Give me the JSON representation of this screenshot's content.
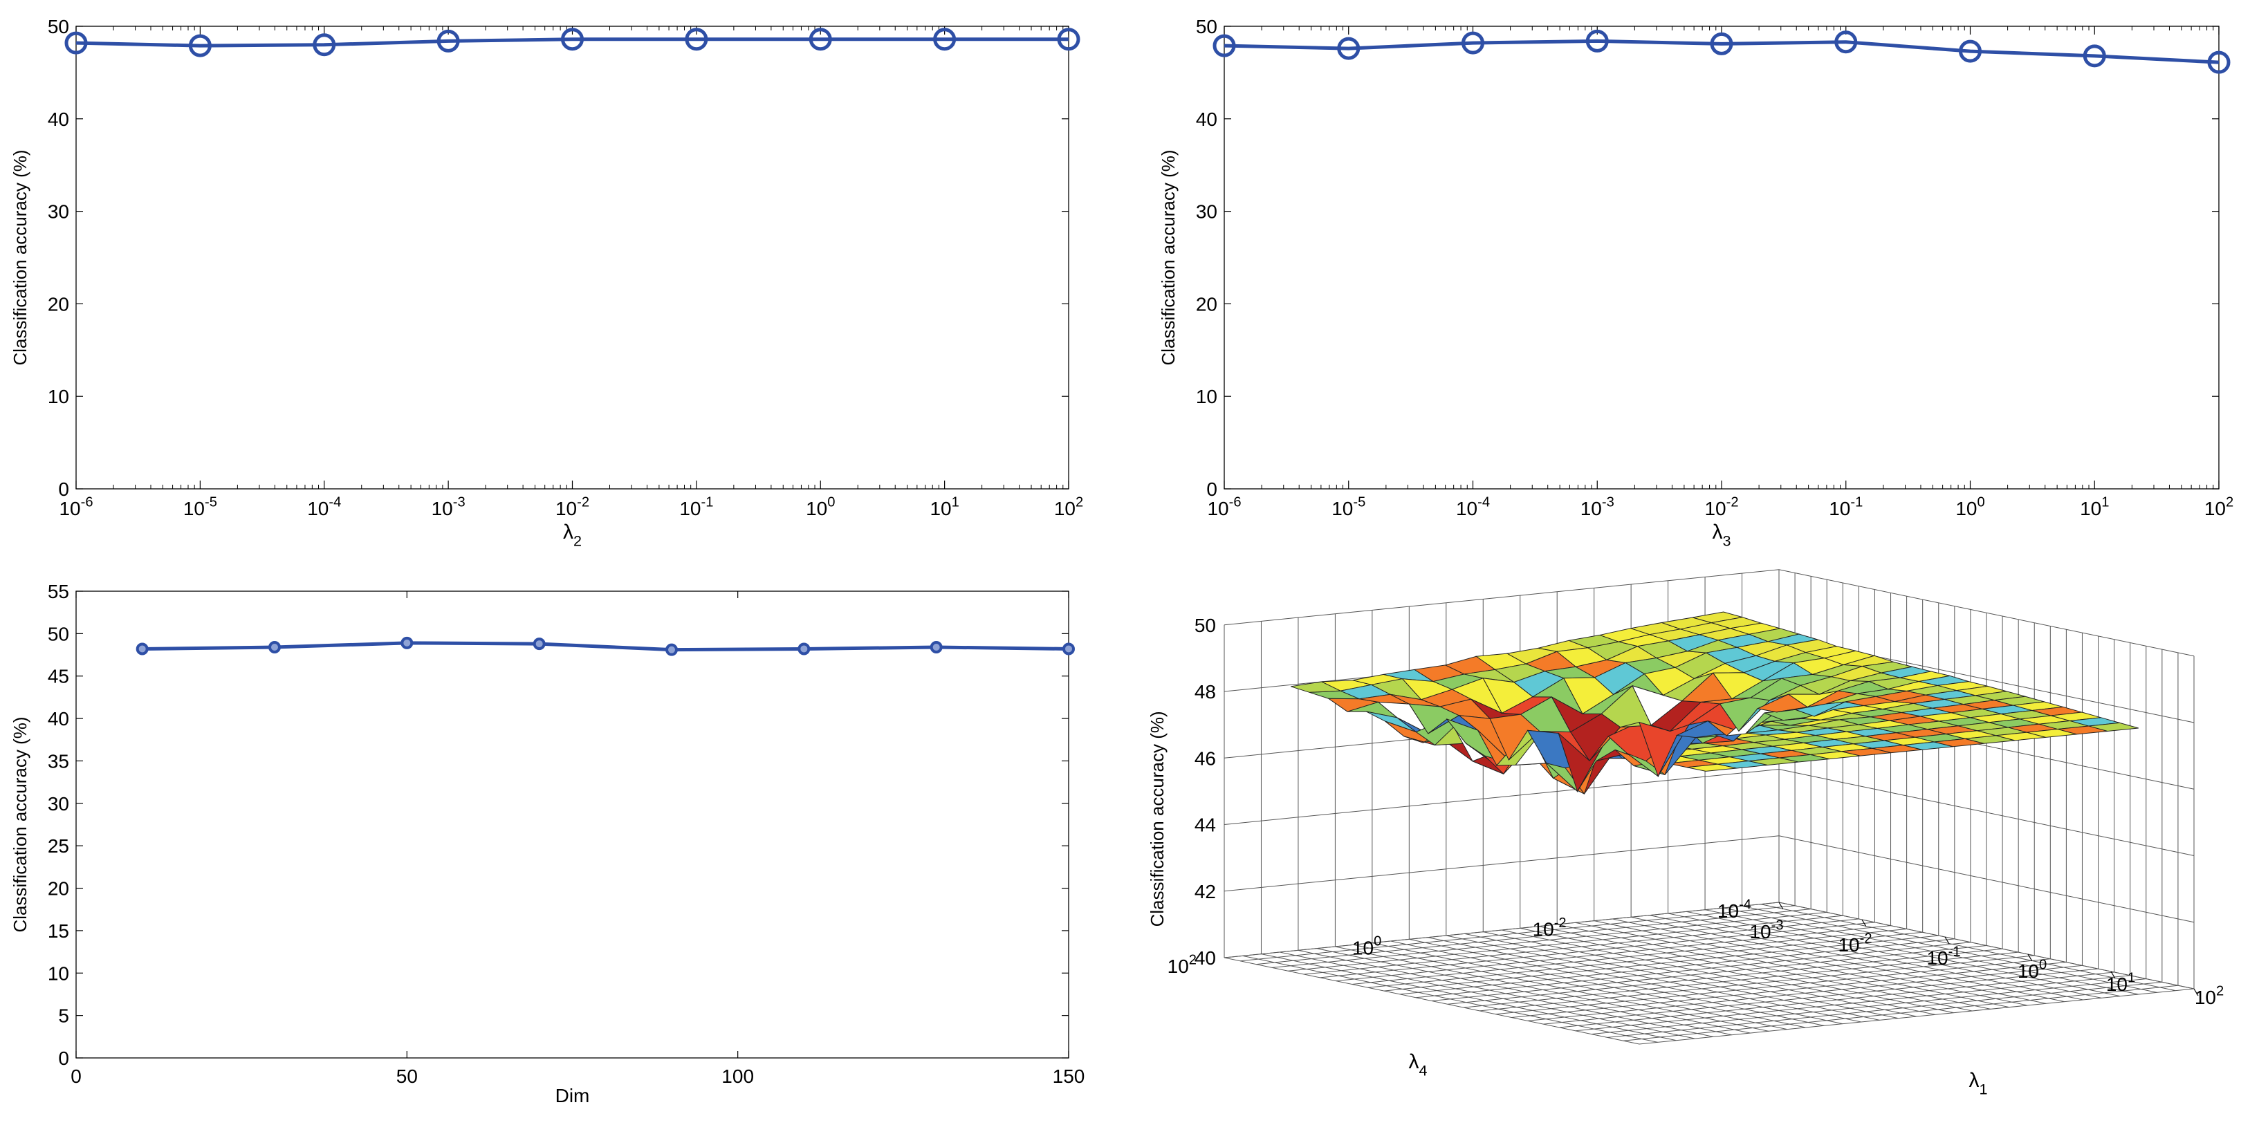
{
  "colors": {
    "series": "#2e4fa6",
    "axis": "#000000",
    "grid3d": "#555555",
    "surface_palette": [
      "#f4ee3a",
      "#e9e53c",
      "#b5d64e",
      "#8bcb63",
      "#5fc8d5",
      "#3b78c2",
      "#f47b28",
      "#e8452b",
      "#b3221f",
      "#ffffff"
    ]
  },
  "chart_data": [
    {
      "id": "lambda2",
      "type": "line",
      "xscale": "log",
      "x": [
        1e-06,
        1e-05,
        0.0001,
        0.001,
        0.01,
        0.1,
        1,
        10,
        100
      ],
      "values": [
        48.2,
        47.9,
        48.0,
        48.4,
        48.6,
        48.6,
        48.6,
        48.6,
        48.6
      ],
      "ylim": [
        0,
        50
      ],
      "yticks": [
        0,
        10,
        20,
        30,
        40,
        50
      ],
      "xtick_labels": [
        {
          "base": "10",
          "exp": "-6"
        },
        {
          "base": "10",
          "exp": "-5"
        },
        {
          "base": "10",
          "exp": "-4"
        },
        {
          "base": "10",
          "exp": "-3"
        },
        {
          "base": "10",
          "exp": "-2"
        },
        {
          "base": "10",
          "exp": "-1"
        },
        {
          "base": "10",
          "exp": "0"
        },
        {
          "base": "10",
          "exp": "1"
        },
        {
          "base": "10",
          "exp": "2"
        }
      ],
      "ylabel": "Classification accuracy (%)",
      "xlabel": {
        "sym": "λ",
        "sub": "2"
      },
      "marker": "large-circle"
    },
    {
      "id": "lambda3",
      "type": "line",
      "xscale": "log",
      "x": [
        1e-06,
        1e-05,
        0.0001,
        0.001,
        0.01,
        0.1,
        1,
        10,
        100
      ],
      "values": [
        47.9,
        47.6,
        48.2,
        48.4,
        48.1,
        48.3,
        47.3,
        46.8,
        46.1
      ],
      "ylim": [
        0,
        50
      ],
      "yticks": [
        0,
        10,
        20,
        30,
        40,
        50
      ],
      "xtick_labels": [
        {
          "base": "10",
          "exp": "-6"
        },
        {
          "base": "10",
          "exp": "-5"
        },
        {
          "base": "10",
          "exp": "-4"
        },
        {
          "base": "10",
          "exp": "-3"
        },
        {
          "base": "10",
          "exp": "-2"
        },
        {
          "base": "10",
          "exp": "-1"
        },
        {
          "base": "10",
          "exp": "0"
        },
        {
          "base": "10",
          "exp": "1"
        },
        {
          "base": "10",
          "exp": "2"
        }
      ],
      "ylabel": "Classification accuracy (%)",
      "xlabel": {
        "sym": "λ",
        "sub": "3"
      },
      "marker": "large-circle"
    },
    {
      "id": "dim",
      "type": "line",
      "xscale": "linear",
      "x": [
        10,
        30,
        50,
        70,
        90,
        110,
        130,
        150
      ],
      "values": [
        48.2,
        48.4,
        48.9,
        48.8,
        48.1,
        48.2,
        48.4,
        48.2
      ],
      "xlim": [
        0,
        150
      ],
      "xticks": [
        0,
        50,
        100,
        150
      ],
      "ylim": [
        0,
        55
      ],
      "yticks": [
        0,
        5,
        10,
        15,
        20,
        25,
        30,
        35,
        40,
        45,
        50,
        55
      ],
      "ylabel": "Classification accuracy (%)",
      "xlabel": "Dim",
      "marker": "small-circle"
    },
    {
      "id": "surface",
      "type": "surface3d",
      "zlim": [
        40,
        50
      ],
      "zticks": [
        40,
        42,
        44,
        46,
        48,
        50
      ],
      "zlabel": "Classification accuracy (%)",
      "x_axis": {
        "sym": "λ",
        "sub": "1",
        "range_exp": [
          -3,
          2
        ],
        "tick_labels": [
          {
            "base": "10",
            "exp": "-3"
          },
          {
            "base": "10",
            "exp": "-2"
          },
          {
            "base": "10",
            "exp": "-1"
          },
          {
            "base": "10",
            "exp": "0"
          },
          {
            "base": "10",
            "exp": "1"
          },
          {
            "base": "10",
            "exp": "2"
          }
        ]
      },
      "y_axis": {
        "sym": "λ",
        "sub": "4",
        "range_exp": [
          -4,
          2
        ],
        "tick_labels": [
          {
            "base": "10",
            "exp": "-4"
          },
          {
            "base": "10",
            "exp": "-2"
          },
          {
            "base": "10",
            "exp": "0"
          },
          {
            "base": "10",
            "exp": "2"
          }
        ]
      },
      "surface_grid": {
        "rows": 14,
        "cols": 22,
        "base_value": 48.0,
        "dip_min": 45.8
      }
    }
  ]
}
